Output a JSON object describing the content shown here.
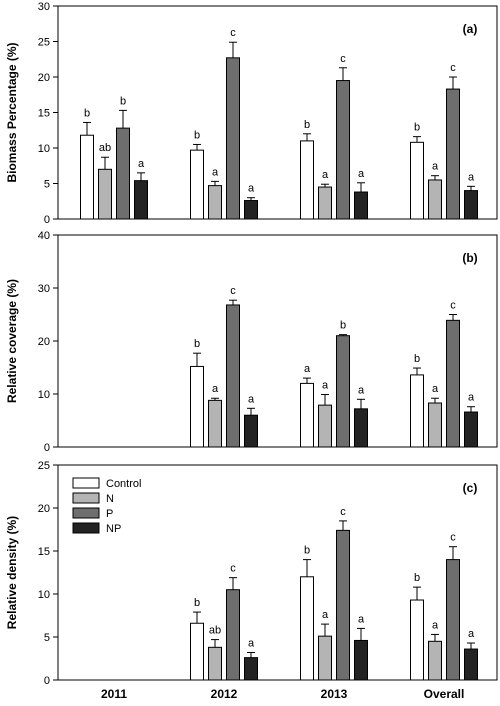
{
  "chart_data": [
    {
      "type": "bar",
      "panel_label": "(a)",
      "ylabel": "Biomass Percentage (%)",
      "ylim": [
        0,
        30
      ],
      "yticks": [
        0,
        5,
        10,
        15,
        20,
        25,
        30
      ],
      "categories": [
        "2011",
        "2012",
        "2013",
        "Overall"
      ],
      "series": [
        {
          "name": "Control",
          "values": [
            11.8,
            9.7,
            11.0,
            10.8
          ],
          "errors": [
            1.8,
            0.8,
            1.0,
            0.8
          ],
          "letters": [
            "b",
            "b",
            "b",
            "b"
          ]
        },
        {
          "name": "N",
          "values": [
            7.0,
            4.7,
            4.5,
            5.5
          ],
          "errors": [
            1.7,
            0.6,
            0.4,
            0.6
          ],
          "letters": [
            "ab",
            "a",
            "a",
            "a"
          ]
        },
        {
          "name": "P",
          "values": [
            12.8,
            22.7,
            19.5,
            18.3
          ],
          "errors": [
            2.5,
            2.2,
            1.8,
            1.7
          ],
          "letters": [
            "b",
            "c",
            "c",
            "c"
          ]
        },
        {
          "name": "NP",
          "values": [
            5.4,
            2.6,
            3.8,
            4.0
          ],
          "errors": [
            1.1,
            0.4,
            1.3,
            0.6
          ],
          "letters": [
            "a",
            "a",
            "a",
            "a"
          ]
        }
      ]
    },
    {
      "type": "bar",
      "panel_label": "(b)",
      "ylabel": "Relative coverage (%)",
      "ylim": [
        0,
        40
      ],
      "yticks": [
        0,
        10,
        20,
        30,
        40
      ],
      "categories": [
        "2011",
        "2012",
        "2013",
        "Overall"
      ],
      "series": [
        {
          "name": "Control",
          "values": [
            null,
            15.2,
            12.0,
            13.6
          ],
          "errors": [
            null,
            2.5,
            1.0,
            1.3
          ],
          "letters": [
            null,
            "b",
            "a",
            "b"
          ]
        },
        {
          "name": "N",
          "values": [
            null,
            8.8,
            7.9,
            8.3
          ],
          "errors": [
            null,
            0.4,
            2.0,
            0.9
          ],
          "letters": [
            null,
            "a",
            "a",
            "a"
          ]
        },
        {
          "name": "P",
          "values": [
            null,
            26.8,
            21.0,
            23.9
          ],
          "errors": [
            null,
            0.9,
            0.2,
            1.1
          ],
          "letters": [
            null,
            "c",
            "b",
            "c"
          ]
        },
        {
          "name": "NP",
          "values": [
            null,
            6.0,
            7.2,
            6.6
          ],
          "errors": [
            null,
            1.3,
            1.8,
            1.0
          ],
          "letters": [
            null,
            "a",
            "a",
            "a"
          ]
        }
      ]
    },
    {
      "type": "bar",
      "panel_label": "(c)",
      "ylabel": "Relative density  (%)",
      "ylim": [
        0,
        25
      ],
      "yticks": [
        0,
        5,
        10,
        15,
        20,
        25
      ],
      "categories": [
        "2011",
        "2012",
        "2013",
        "Overall"
      ],
      "series": [
        {
          "name": "Control",
          "values": [
            null,
            6.6,
            12.0,
            9.3
          ],
          "errors": [
            null,
            1.3,
            2.0,
            1.5
          ],
          "letters": [
            null,
            "b",
            "b",
            "b"
          ]
        },
        {
          "name": "N",
          "values": [
            null,
            3.8,
            5.1,
            4.5
          ],
          "errors": [
            null,
            0.9,
            1.4,
            0.8
          ],
          "letters": [
            null,
            "ab",
            "a",
            "a"
          ]
        },
        {
          "name": "P",
          "values": [
            null,
            10.5,
            17.4,
            14.0
          ],
          "errors": [
            null,
            1.4,
            1.1,
            1.5
          ],
          "letters": [
            null,
            "c",
            "c",
            "c"
          ]
        },
        {
          "name": "NP",
          "values": [
            null,
            2.6,
            4.6,
            3.6
          ],
          "errors": [
            null,
            0.6,
            1.4,
            0.7
          ],
          "letters": [
            null,
            "a",
            "a",
            "a"
          ]
        }
      ],
      "legend_position": "top-left"
    }
  ],
  "colors": {
    "Control": "#ffffff",
    "N": "#b4b4b4",
    "P": "#6e6e6e",
    "NP": "#232323"
  }
}
